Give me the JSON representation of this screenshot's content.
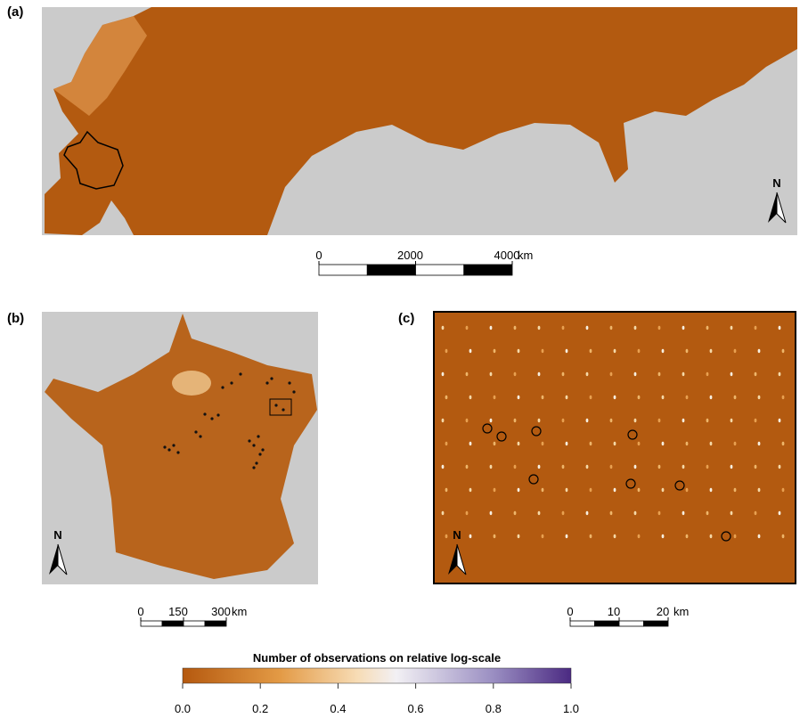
{
  "panels": [
    {
      "label": "(a)",
      "north": "N",
      "scale": {
        "ticks": [
          0,
          2000,
          4000
        ],
        "unit": "km"
      }
    },
    {
      "label": "(b)",
      "north": "N",
      "scale": {
        "ticks": [
          0,
          150,
          300
        ],
        "unit": "km"
      }
    },
    {
      "label": "(c)",
      "north": "N",
      "scale": {
        "ticks": [
          0,
          10,
          20
        ],
        "unit": "km"
      }
    }
  ],
  "colorbar": {
    "title": "Number of observations on relative log-scale",
    "ticks": [
      {
        "value": 0,
        "label": "0.0"
      },
      {
        "value": 0.2,
        "label": "0.2"
      },
      {
        "value": 0.4,
        "label": "0.4"
      },
      {
        "value": 0.6,
        "label": "0.6"
      },
      {
        "value": 0.8,
        "label": "0.8"
      },
      {
        "value": 1,
        "label": "1.0"
      }
    ]
  }
}
